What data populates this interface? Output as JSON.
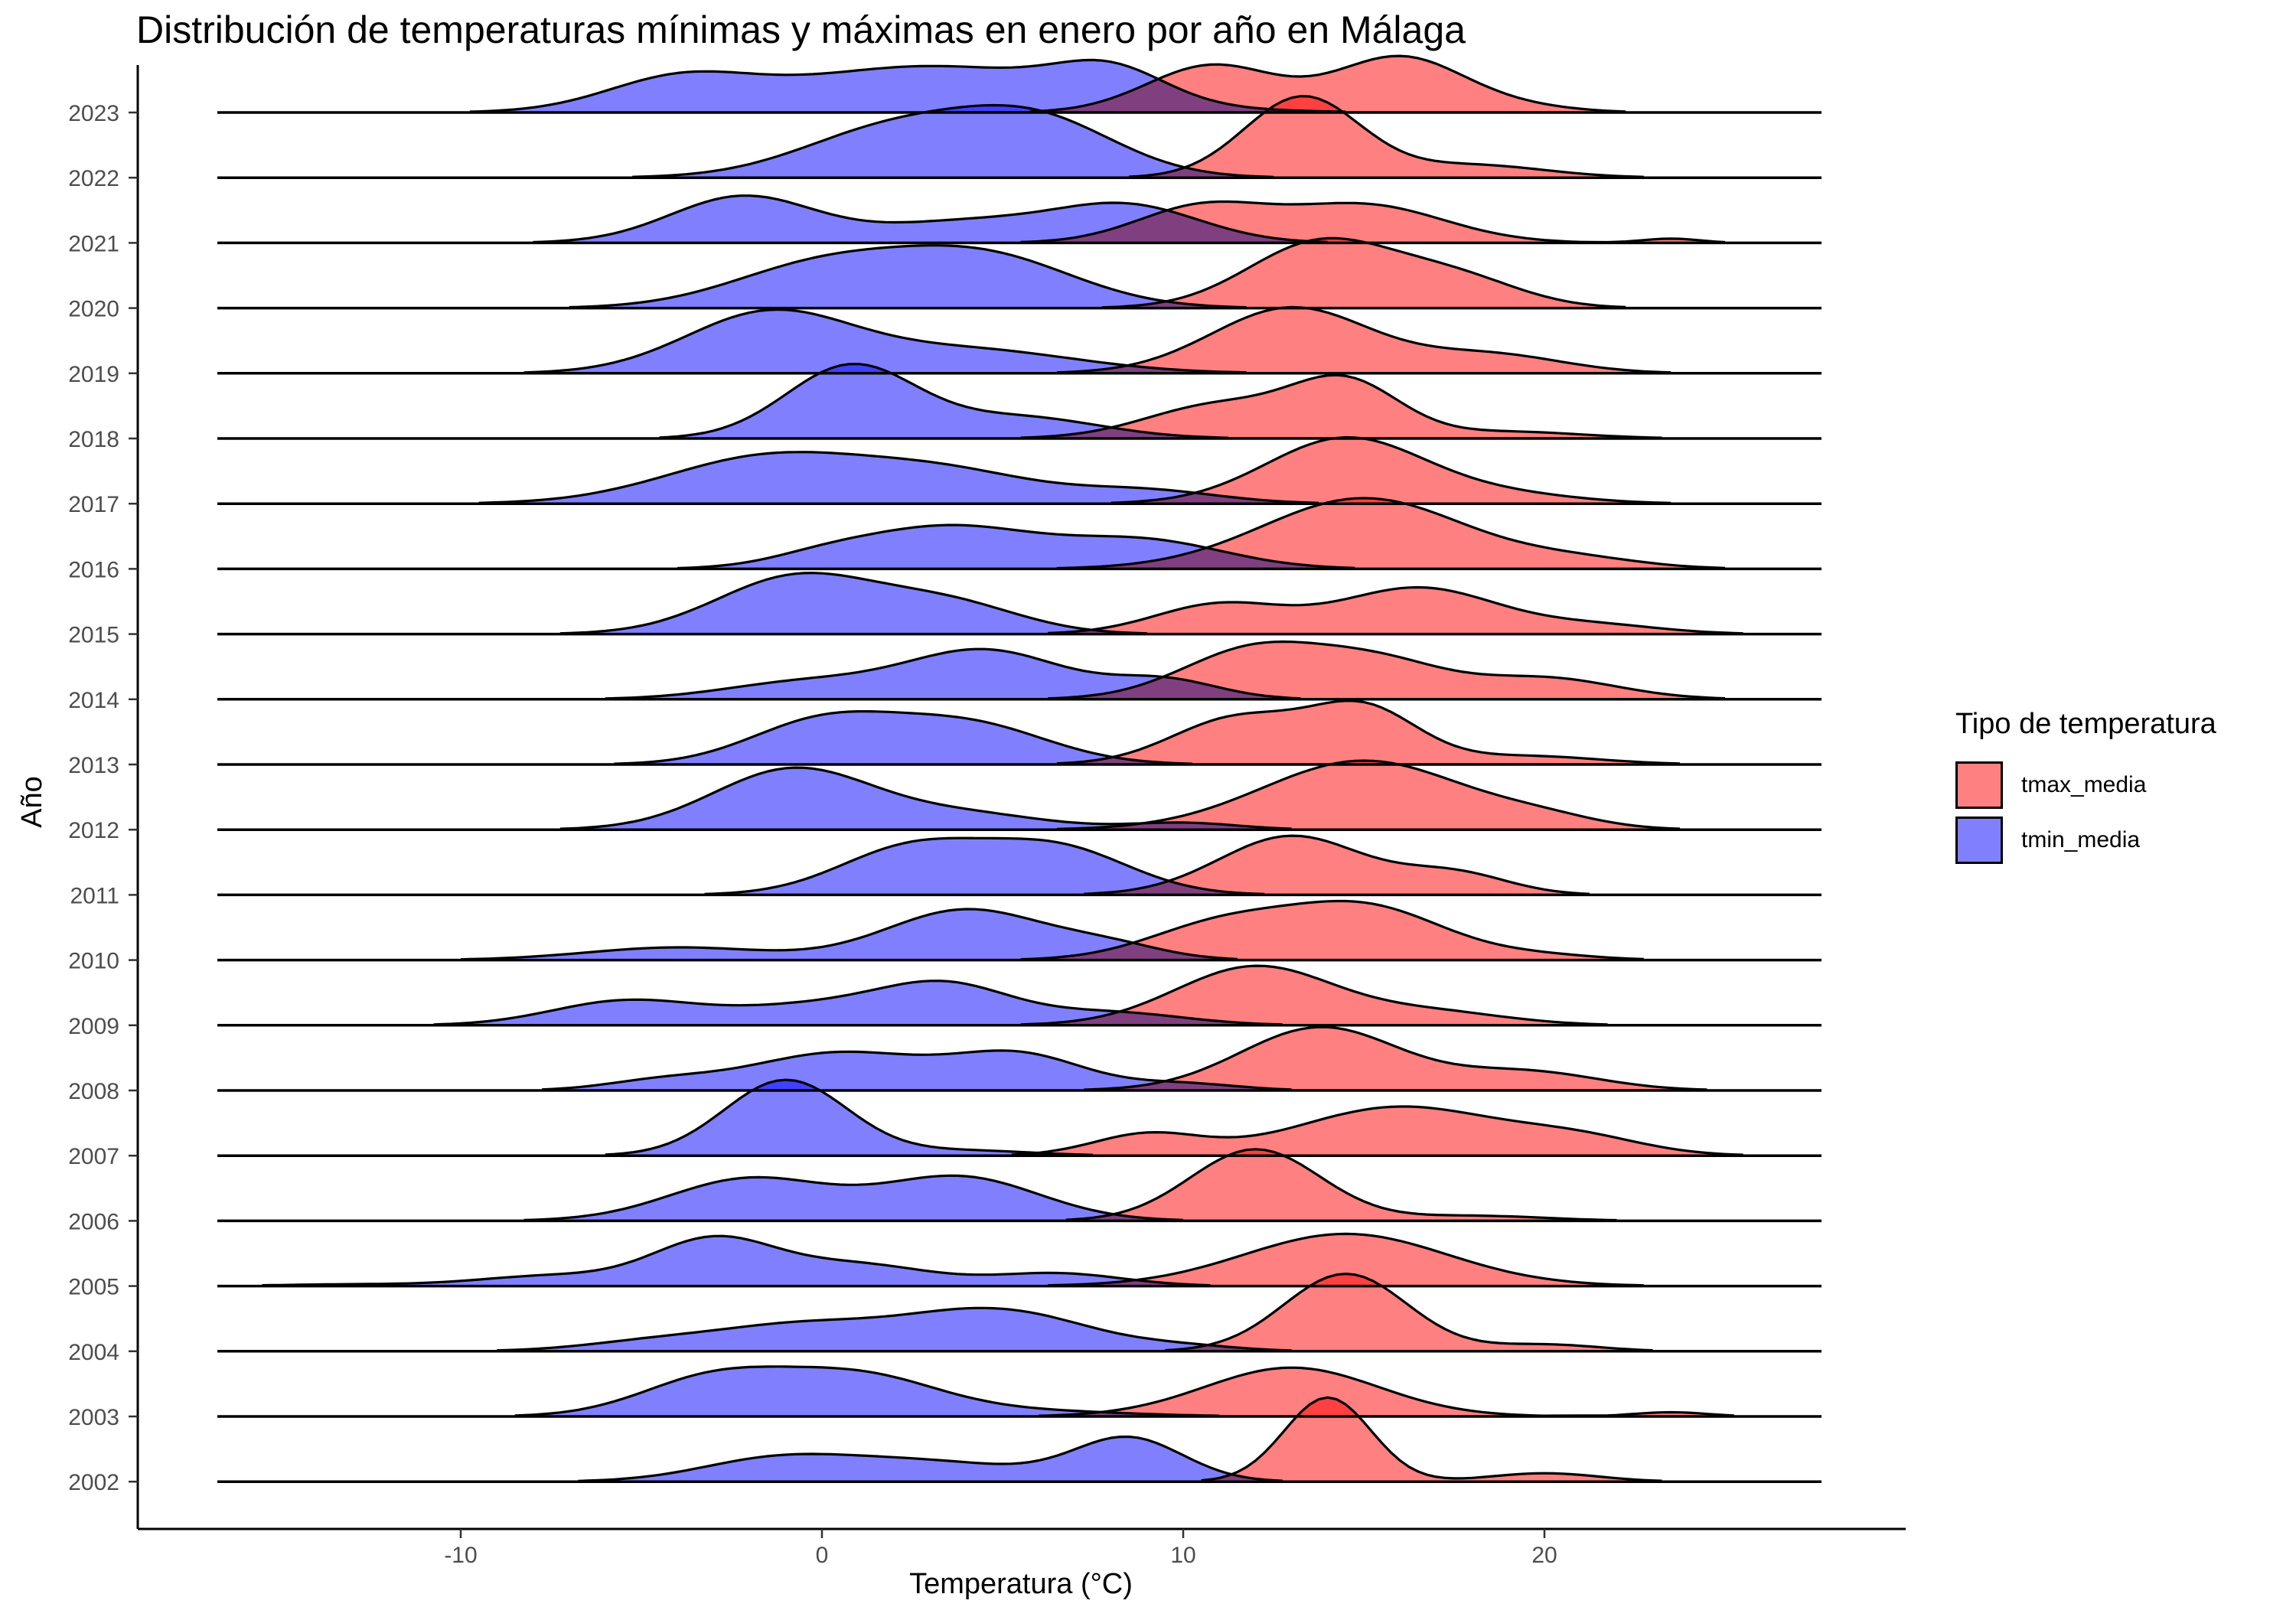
{
  "chart_data": {
    "type": "ridgeline",
    "title": "Distribución de temperaturas mínimas y máximas en enero por año en Málaga",
    "xlabel": "Temperatura (°C)",
    "ylabel": "Año",
    "xlim": [
      -19,
      30
    ],
    "x_ticks": [
      -10,
      0,
      10,
      20
    ],
    "years": [
      "2002",
      "2003",
      "2004",
      "2005",
      "2006",
      "2007",
      "2008",
      "2009",
      "2010",
      "2011",
      "2012",
      "2013",
      "2014",
      "2015",
      "2016",
      "2017",
      "2018",
      "2019",
      "2020",
      "2021",
      "2022",
      "2023"
    ],
    "legend_title": "Tipo de temperatura",
    "legend_position": "right",
    "grid": false,
    "series": [
      {
        "name": "tmax_media",
        "color": "#FF8080",
        "peaks_by_year": [
          [
            [
              14,
              1.0,
              1.2
            ],
            [
              20,
              0.1,
              1.5
            ]
          ],
          [
            [
              13,
              0.58,
              2.4
            ],
            [
              23.5,
              0.05,
              1.0
            ]
          ],
          [
            [
              14.5,
              0.92,
              1.7
            ],
            [
              20,
              0.08,
              1.5
            ]
          ],
          [
            [
              14.5,
              0.62,
              2.8
            ]
          ],
          [
            [
              12,
              0.85,
              1.8
            ],
            [
              18,
              0.06,
              2.0
            ]
          ],
          [
            [
              9,
              0.25,
              1.5
            ],
            [
              16,
              0.58,
              2.8
            ],
            [
              21,
              0.18,
              1.8
            ]
          ],
          [
            [
              13.8,
              0.75,
              2.2
            ],
            [
              19.5,
              0.22,
              2.0
            ]
          ],
          [
            [
              12,
              0.7,
              2.2
            ],
            [
              17,
              0.15,
              2.0
            ]
          ],
          [
            [
              11,
              0.4,
              2.0
            ],
            [
              15,
              0.63,
              2.2
            ],
            [
              20,
              0.05,
              1.5
            ]
          ],
          [
            [
              13,
              0.7,
              2.0
            ],
            [
              17.5,
              0.25,
              1.5
            ]
          ],
          [
            [
              15,
              0.82,
              2.8
            ],
            [
              20,
              0.1,
              1.5
            ]
          ],
          [
            [
              11.5,
              0.55,
              1.8
            ],
            [
              15,
              0.65,
              1.5
            ],
            [
              19.5,
              0.1,
              2.0
            ]
          ],
          [
            [
              12,
              0.6,
              2.0
            ],
            [
              15.5,
              0.4,
              1.8
            ],
            [
              20,
              0.25,
              2.0
            ]
          ],
          [
            [
              11,
              0.35,
              1.8
            ],
            [
              16.5,
              0.55,
              2.2
            ],
            [
              21.5,
              0.1,
              1.8
            ]
          ],
          [
            [
              15,
              0.84,
              2.8
            ],
            [
              21,
              0.1,
              1.8
            ]
          ],
          [
            [
              14.5,
              0.78,
              2.2
            ],
            [
              19,
              0.1,
              2.0
            ]
          ],
          [
            [
              11,
              0.4,
              2.0
            ],
            [
              14.5,
              0.65,
              1.5
            ],
            [
              19,
              0.08,
              2.0
            ]
          ],
          [
            [
              13,
              0.78,
              2.2
            ],
            [
              18.5,
              0.22,
              2.0
            ]
          ],
          [
            [
              13.8,
              0.78,
              2.0
            ],
            [
              17.5,
              0.35,
              1.8
            ]
          ],
          [
            [
              10.5,
              0.42,
              1.8
            ],
            [
              15,
              0.45,
              2.2
            ],
            [
              23.5,
              0.05,
              0.8
            ]
          ],
          [
            [
              13.3,
              0.96,
              1.6
            ],
            [
              18,
              0.15,
              2.0
            ]
          ],
          [
            [
              10.8,
              0.56,
              1.8
            ],
            [
              16,
              0.66,
              1.8
            ],
            [
              19.5,
              0.05,
              1.5
            ]
          ]
        ]
      },
      {
        "name": "tmin_media",
        "color": "#8080FF",
        "peaks_by_year": [
          [
            [
              -1.5,
              0.2,
              2.0
            ],
            [
              2.5,
              0.25,
              3.0
            ],
            [
              8.5,
              0.5,
              1.5
            ]
          ],
          [
            [
              -3,
              0.45,
              2.0
            ],
            [
              1,
              0.48,
              2.2
            ],
            [
              6,
              0.06,
              2.5
            ]
          ],
          [
            [
              -4.5,
              0.12,
              2.0
            ],
            [
              -0.5,
              0.3,
              2.2
            ],
            [
              3.5,
              0.3,
              2.0
            ],
            [
              6,
              0.3,
              2.0
            ],
            [
              10,
              0.06,
              1.5
            ]
          ],
          [
            [
              -13,
              0.02,
              2.0
            ],
            [
              -7.5,
              0.12,
              2.0
            ],
            [
              -3,
              0.55,
              1.7
            ],
            [
              1,
              0.25,
              2.0
            ],
            [
              6.5,
              0.15,
              1.8
            ]
          ],
          [
            [
              -2,
              0.5,
              2.2
            ],
            [
              3.8,
              0.52,
              2.2
            ]
          ],
          [
            [
              -1,
              0.9,
              1.7
            ],
            [
              4,
              0.06,
              1.8
            ]
          ],
          [
            [
              -4.5,
              0.1,
              1.5
            ],
            [
              0.5,
              0.45,
              2.5
            ],
            [
              5.5,
              0.4,
              1.8
            ],
            [
              10,
              0.08,
              1.5
            ]
          ],
          [
            [
              -5.5,
              0.28,
              2.0
            ],
            [
              0,
              0.24,
              2.5
            ],
            [
              3.5,
              0.42,
              1.8
            ],
            [
              8,
              0.15,
              2.0
            ]
          ],
          [
            [
              -4,
              0.15,
              2.5
            ],
            [
              4,
              0.6,
              2.2
            ],
            [
              8,
              0.15,
              1.5
            ]
          ],
          [
            [
              2.5,
              0.56,
              2.0
            ],
            [
              6.5,
              0.55,
              2.0
            ]
          ],
          [
            [
              -0.8,
              0.72,
              2.2
            ],
            [
              4,
              0.18,
              2.2
            ],
            [
              10,
              0.08,
              1.5
            ]
          ],
          [
            [
              0,
              0.5,
              2.0
            ],
            [
              4,
              0.48,
              2.2
            ]
          ],
          [
            [
              -0.5,
              0.2,
              2.2
            ],
            [
              4.5,
              0.58,
              2.2
            ],
            [
              9.5,
              0.22,
              1.5
            ]
          ],
          [
            [
              -0.7,
              0.68,
              2.2
            ],
            [
              3.5,
              0.35,
              2.0
            ]
          ],
          [
            [
              0,
              0.1,
              1.5
            ],
            [
              3.5,
              0.5,
              2.5
            ],
            [
              9,
              0.32,
              2.2
            ]
          ],
          [
            [
              -1.5,
              0.55,
              2.8
            ],
            [
              3.5,
              0.35,
              2.5
            ],
            [
              9,
              0.15,
              2.0
            ]
          ],
          [
            [
              0.8,
              0.86,
              1.8
            ],
            [
              5.5,
              0.25,
              2.2
            ]
          ],
          [
            [
              -1.5,
              0.7,
              2.3
            ],
            [
              4,
              0.28,
              3.0
            ]
          ],
          [
            [
              0,
              0.5,
              2.5
            ],
            [
              4.5,
              0.6,
              2.5
            ]
          ],
          [
            [
              -2.2,
              0.55,
              2.0
            ],
            [
              4,
              0.25,
              2.5
            ],
            [
              8.5,
              0.42,
              2.0
            ]
          ],
          [
            [
              2,
              0.58,
              2.5
            ],
            [
              6,
              0.64,
              2.2
            ]
          ],
          [
            [
              -4,
              0.35,
              2.0
            ],
            [
              3,
              0.55,
              4.0
            ],
            [
              8,
              0.35,
              1.5
            ]
          ]
        ]
      }
    ]
  }
}
